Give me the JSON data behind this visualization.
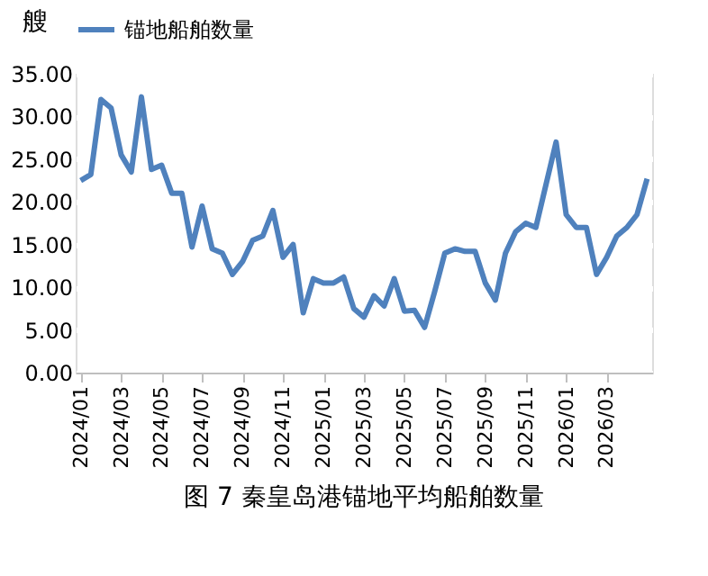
{
  "chart_data": {
    "type": "line",
    "title": "图 7 秦皇岛港锚地平均船舶数量",
    "ylabel": "艘",
    "categories": [
      "2024/01",
      null,
      null,
      null,
      "2024/03",
      null,
      null,
      null,
      "2024/05",
      null,
      null,
      null,
      "2024/07",
      null,
      null,
      null,
      "2024/09",
      null,
      null,
      null,
      "2024/11",
      null,
      null,
      null,
      "2025/01",
      null,
      null,
      null,
      "2025/03",
      null,
      null,
      null,
      "2025/05",
      null,
      null,
      null,
      "2025/07",
      null,
      null,
      null,
      "2025/09",
      null,
      null,
      null,
      "2025/11",
      null,
      null,
      null,
      "2026/01",
      null,
      null,
      null,
      "2026/03",
      null,
      null,
      null,
      null
    ],
    "series": [
      {
        "name": "锚地船舶数量",
        "color": "#4f81bd",
        "values": [
          22.5,
          23.2,
          32,
          31,
          25.5,
          23.5,
          32.3,
          23.8,
          24.3,
          21,
          21,
          14.7,
          19.5,
          14.5,
          14,
          11.5,
          13,
          15.5,
          16,
          19,
          13.5,
          15,
          7,
          11,
          10.5,
          10.5,
          11.2,
          7.5,
          6.5,
          9,
          7.8,
          11,
          7.2,
          7.3,
          5.3,
          9.5,
          14,
          14.5,
          14.2,
          14.2,
          10.5,
          8.5,
          14,
          16.5,
          17.5,
          17,
          22,
          27,
          18.5,
          17,
          17,
          11.5,
          13.5,
          16,
          17,
          18.5,
          22.7
        ]
      }
    ],
    "ylim": [
      0,
      35
    ],
    "yticks": [
      {
        "value": 0,
        "label": "0.00"
      },
      {
        "value": 5,
        "label": "5.00"
      },
      {
        "value": 10,
        "label": "10.00"
      },
      {
        "value": 15,
        "label": "15.00"
      },
      {
        "value": 20,
        "label": "20.00"
      },
      {
        "value": 25,
        "label": "25.00"
      },
      {
        "value": 30,
        "label": "30.00"
      },
      {
        "value": 35,
        "label": "35.00"
      }
    ],
    "grid": true,
    "legend": "top",
    "marker": "none",
    "line_style": "solid"
  }
}
